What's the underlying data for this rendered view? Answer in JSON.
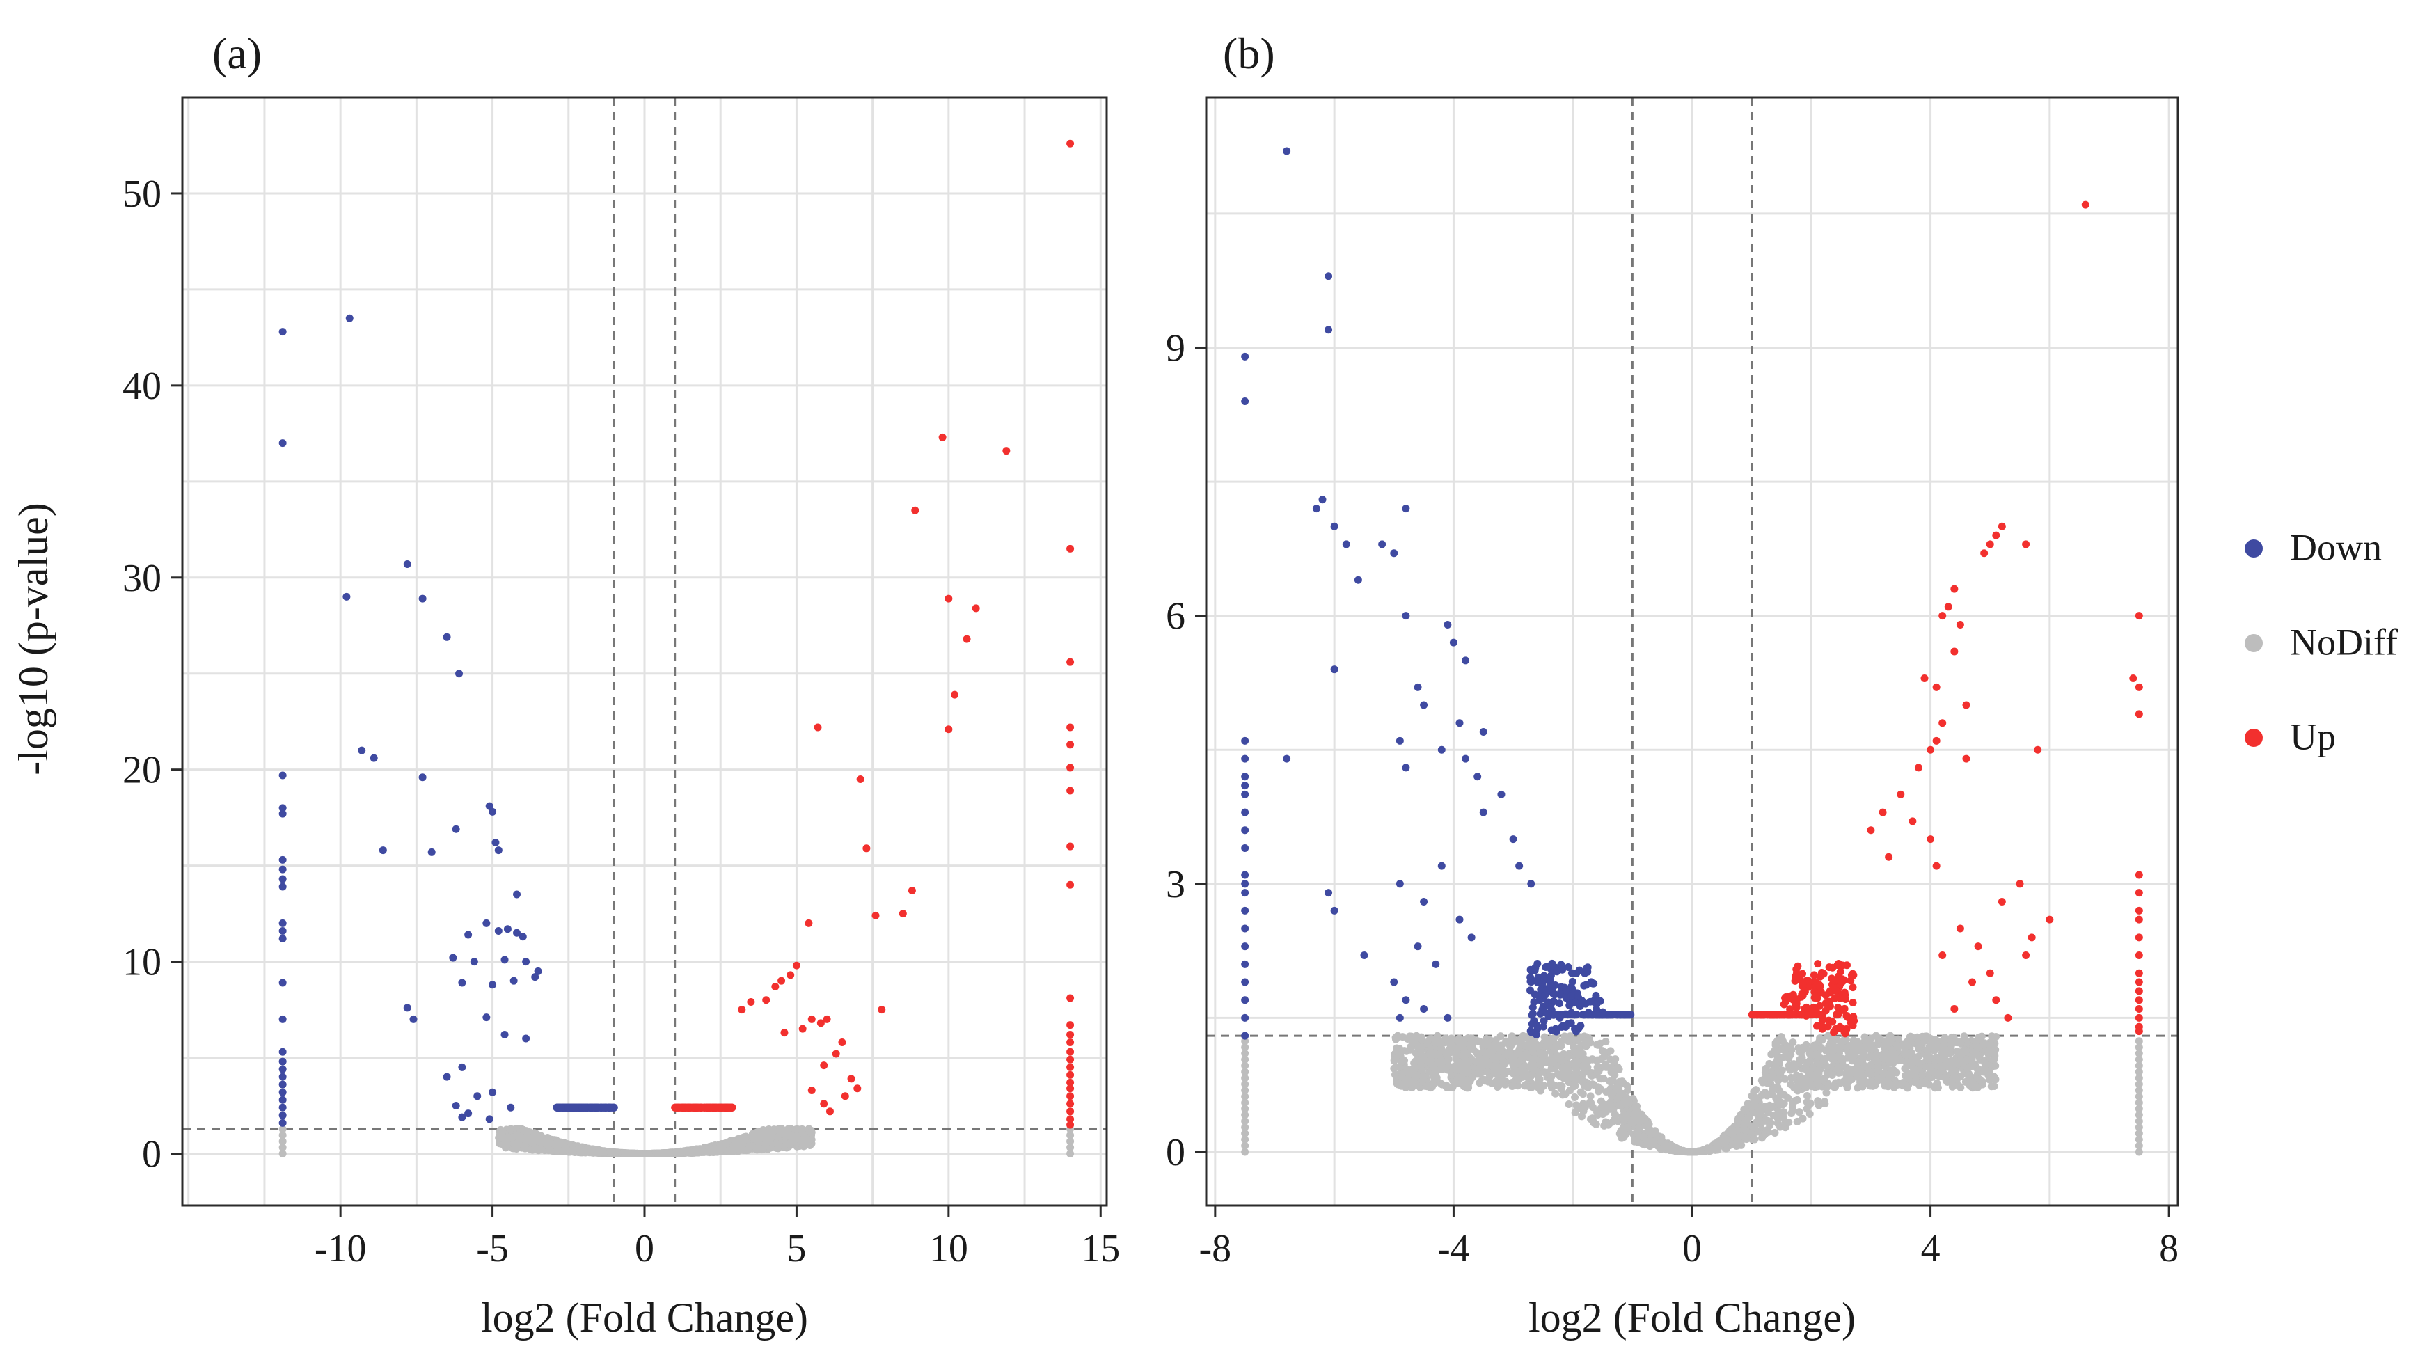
{
  "colors": {
    "down": "#3f4aa1",
    "nodiff": "#bdbdbd",
    "up": "#f2302e",
    "grid": "#e2e2e2",
    "frame": "#2b2b2b",
    "threshold": "#777777"
  },
  "legend": {
    "items": [
      {
        "key": "down",
        "label": "Down"
      },
      {
        "key": "nodiff",
        "label": "NoDiff"
      },
      {
        "key": "up",
        "label": "Up"
      }
    ]
  },
  "chart_data": [
    {
      "type": "scatter",
      "panel_label": "(a)",
      "title": "",
      "xlabel": "log2 (Fold Change)",
      "ylabel": "-log10 (p-value)",
      "xlim": [
        -15.2,
        15.2
      ],
      "ylim": [
        -2.7,
        55
      ],
      "xticks": [
        {
          "value": -10,
          "label": "-10"
        },
        {
          "value": -5,
          "label": "-5"
        },
        {
          "value": 0,
          "label": "0"
        },
        {
          "value": 5,
          "label": "5"
        },
        {
          "value": 10,
          "label": "10"
        },
        {
          "value": 15,
          "label": "15"
        }
      ],
      "yticks": [
        {
          "value": 0,
          "label": "0"
        },
        {
          "value": 10,
          "label": "10"
        },
        {
          "value": 20,
          "label": "20"
        },
        {
          "value": 30,
          "label": "30"
        },
        {
          "value": 40,
          "label": "40"
        },
        {
          "value": 50,
          "label": "50"
        }
      ],
      "thresholds": {
        "log2fc": [
          -1,
          1
        ],
        "neg_log10_p": 1.3
      },
      "cloud": {
        "xmin": -4.8,
        "xmax": 5.5,
        "curvature": 0.055,
        "extreme_left": -11.9,
        "extreme_right": 14
      },
      "series": [
        {
          "name": "Down",
          "key": "down",
          "points": [
            [
              -11.9,
              42.8
            ],
            [
              -11.9,
              37.0
            ],
            [
              -9.7,
              43.5
            ],
            [
              -9.8,
              29.0
            ],
            [
              -7.8,
              30.7
            ],
            [
              -7.3,
              28.9
            ],
            [
              -6.5,
              26.9
            ],
            [
              -6.1,
              25.0
            ],
            [
              -9.3,
              21.0
            ],
            [
              -8.9,
              20.6
            ],
            [
              -7.3,
              19.6
            ],
            [
              -5.1,
              18.1
            ],
            [
              -5.0,
              17.8
            ],
            [
              -4.9,
              16.2
            ],
            [
              -4.8,
              15.8
            ],
            [
              -6.2,
              16.9
            ],
            [
              -8.6,
              15.8
            ],
            [
              -7.0,
              15.7
            ],
            [
              -4.2,
              13.5
            ],
            [
              -5.2,
              12.0
            ],
            [
              -5.8,
              11.4
            ],
            [
              -4.8,
              11.6
            ],
            [
              -4.5,
              11.7
            ],
            [
              -4.2,
              11.5
            ],
            [
              -4.0,
              11.3
            ],
            [
              -6.3,
              10.2
            ],
            [
              -5.6,
              10.0
            ],
            [
              -4.6,
              10.1
            ],
            [
              -3.9,
              10.0
            ],
            [
              -3.5,
              9.5
            ],
            [
              -6.0,
              8.9
            ],
            [
              -5.0,
              8.8
            ],
            [
              -4.3,
              9.0
            ],
            [
              -3.6,
              9.2
            ],
            [
              -7.8,
              7.6
            ],
            [
              -7.6,
              7.0
            ],
            [
              -5.2,
              7.1
            ],
            [
              -4.6,
              6.2
            ],
            [
              -3.9,
              6.0
            ],
            [
              -6.5,
              4.0
            ],
            [
              -6.0,
              4.5
            ],
            [
              -5.5,
              3.0
            ],
            [
              -5.0,
              3.2
            ],
            [
              -6.2,
              2.5
            ],
            [
              -5.8,
              2.1
            ],
            [
              -4.4,
              2.4
            ],
            [
              -6.0,
              1.9
            ],
            [
              -5.1,
              1.8
            ]
          ]
        },
        {
          "name": "Up",
          "key": "up",
          "points": [
            [
              14.0,
              52.6
            ],
            [
              9.8,
              37.3
            ],
            [
              11.9,
              36.6
            ],
            [
              8.9,
              33.5
            ],
            [
              14.0,
              31.5
            ],
            [
              10.0,
              28.9
            ],
            [
              10.9,
              28.4
            ],
            [
              10.6,
              26.8
            ],
            [
              14.0,
              25.6
            ],
            [
              10.2,
              23.9
            ],
            [
              10.0,
              22.1
            ],
            [
              5.7,
              22.2
            ],
            [
              7.1,
              19.5
            ],
            [
              7.3,
              15.9
            ],
            [
              8.8,
              13.7
            ],
            [
              8.5,
              12.5
            ],
            [
              7.6,
              12.4
            ],
            [
              5.4,
              12.0
            ],
            [
              7.8,
              7.5
            ],
            [
              5.0,
              9.8
            ],
            [
              4.8,
              9.3
            ],
            [
              4.5,
              9.0
            ],
            [
              4.3,
              8.7
            ],
            [
              3.5,
              7.9
            ],
            [
              3.2,
              7.5
            ],
            [
              4.0,
              8.0
            ],
            [
              6.0,
              7.0
            ],
            [
              5.8,
              6.8
            ],
            [
              5.5,
              7.0
            ],
            [
              5.2,
              6.5
            ],
            [
              4.6,
              6.3
            ],
            [
              6.5,
              5.8
            ],
            [
              6.3,
              5.2
            ],
            [
              5.9,
              4.6
            ],
            [
              6.8,
              3.9
            ],
            [
              7.0,
              3.4
            ],
            [
              6.6,
              3.0
            ],
            [
              5.9,
              2.6
            ],
            [
              5.5,
              3.3
            ],
            [
              6.1,
              2.2
            ]
          ]
        }
      ]
    },
    {
      "type": "scatter",
      "panel_label": "(b)",
      "title": "",
      "xlabel": "log2 (Fold Change)",
      "ylabel": "",
      "xlim": [
        -8.15,
        8.15
      ],
      "ylim": [
        -0.6,
        11.8
      ],
      "xticks": [
        {
          "value": -8,
          "label": "-8"
        },
        {
          "value": -4,
          "label": "-4"
        },
        {
          "value": 0,
          "label": "0"
        },
        {
          "value": 4,
          "label": "4"
        },
        {
          "value": 8,
          "label": "8"
        }
      ],
      "yticks": [
        {
          "value": 0,
          "label": "0"
        },
        {
          "value": 3,
          "label": "3"
        },
        {
          "value": 6,
          "label": "6"
        },
        {
          "value": 9,
          "label": "9"
        }
      ],
      "thresholds": {
        "log2fc": [
          -1,
          1
        ],
        "neg_log10_p": 1.3
      },
      "cloud": {
        "xmin": -5.0,
        "xmax": 5.1,
        "curvature": 0.42,
        "extreme_left": -7.5,
        "extreme_right": 7.5
      },
      "series": [
        {
          "name": "Down",
          "key": "down",
          "points": [
            [
              -6.8,
              11.2
            ],
            [
              -6.1,
              9.8
            ],
            [
              -6.1,
              9.2
            ],
            [
              -7.5,
              8.9
            ],
            [
              -7.5,
              8.4
            ],
            [
              -6.3,
              7.2
            ],
            [
              -4.8,
              7.2
            ],
            [
              -6.0,
              7.0
            ],
            [
              -5.8,
              6.8
            ],
            [
              -5.6,
              6.4
            ],
            [
              -5.2,
              6.8
            ],
            [
              -5.0,
              6.7
            ],
            [
              -6.2,
              7.3
            ],
            [
              -4.1,
              5.9
            ],
            [
              -4.0,
              5.7
            ],
            [
              -3.8,
              5.5
            ],
            [
              -4.8,
              6.0
            ],
            [
              -6.0,
              5.4
            ],
            [
              -4.6,
              5.2
            ],
            [
              -4.5,
              5.0
            ],
            [
              -3.9,
              4.8
            ],
            [
              -3.5,
              4.7
            ],
            [
              -3.8,
              4.4
            ],
            [
              -6.8,
              4.4
            ],
            [
              -4.9,
              4.6
            ],
            [
              -4.2,
              4.5
            ],
            [
              -3.6,
              4.2
            ],
            [
              -3.2,
              4.0
            ],
            [
              -4.8,
              4.3
            ],
            [
              -3.5,
              3.8
            ],
            [
              -3.0,
              3.5
            ],
            [
              -2.9,
              3.2
            ],
            [
              -2.7,
              3.0
            ],
            [
              -6.1,
              2.9
            ],
            [
              -6.0,
              2.7
            ],
            [
              -4.9,
              3.0
            ],
            [
              -4.5,
              2.8
            ],
            [
              -4.2,
              3.2
            ],
            [
              -3.9,
              2.6
            ],
            [
              -5.5,
              2.2
            ],
            [
              -4.6,
              2.3
            ],
            [
              -4.3,
              2.1
            ],
            [
              -5.0,
              1.9
            ],
            [
              -4.8,
              1.7
            ],
            [
              -4.5,
              1.6
            ],
            [
              -3.7,
              2.4
            ],
            [
              -4.1,
              1.5
            ],
            [
              -4.9,
              1.5
            ]
          ]
        },
        {
          "name": "Up",
          "key": "up",
          "points": [
            [
              6.6,
              10.6
            ],
            [
              5.2,
              7.0
            ],
            [
              5.1,
              6.9
            ],
            [
              5.0,
              6.8
            ],
            [
              4.9,
              6.7
            ],
            [
              5.6,
              6.8
            ],
            [
              4.4,
              6.3
            ],
            [
              4.3,
              6.1
            ],
            [
              4.2,
              6.0
            ],
            [
              4.5,
              5.9
            ],
            [
              4.4,
              5.6
            ],
            [
              3.9,
              5.3
            ],
            [
              4.1,
              5.2
            ],
            [
              4.6,
              5.0
            ],
            [
              4.2,
              4.8
            ],
            [
              4.1,
              4.6
            ],
            [
              4.0,
              4.5
            ],
            [
              3.8,
              4.3
            ],
            [
              4.6,
              4.4
            ],
            [
              5.8,
              4.5
            ],
            [
              3.5,
              4.0
            ],
            [
              3.2,
              3.8
            ],
            [
              3.0,
              3.6
            ],
            [
              3.7,
              3.7
            ],
            [
              4.0,
              3.5
            ],
            [
              3.3,
              3.3
            ],
            [
              4.1,
              3.2
            ],
            [
              5.5,
              3.0
            ],
            [
              5.2,
              2.8
            ],
            [
              6.0,
              2.6
            ],
            [
              5.7,
              2.4
            ],
            [
              5.6,
              2.2
            ],
            [
              4.5,
              2.5
            ],
            [
              4.8,
              2.3
            ],
            [
              5.0,
              2.0
            ],
            [
              4.2,
              2.2
            ],
            [
              4.7,
              1.9
            ],
            [
              5.1,
              1.7
            ],
            [
              5.3,
              1.5
            ],
            [
              4.4,
              1.6
            ],
            [
              7.4,
              5.3
            ],
            [
              7.5,
              5.2
            ],
            [
              7.5,
              4.9
            ]
          ]
        }
      ],
      "extreme_columns": [
        {
          "x": -7.5,
          "key": "down",
          "ys": [
            4.6,
            4.4,
            4.2,
            4.1,
            4.0,
            3.8,
            3.6,
            3.4,
            3.1,
            3.0,
            2.9,
            2.7,
            2.5,
            2.3,
            2.1,
            1.9,
            1.7,
            1.5,
            1.3
          ]
        },
        {
          "x": 7.5,
          "key": "up",
          "ys": [
            6.0,
            3.1,
            2.9,
            2.7,
            2.6,
            2.4,
            2.2,
            2.0,
            1.9,
            1.8,
            1.7,
            1.6,
            1.5,
            1.4,
            1.35
          ]
        }
      ]
    }
  ]
}
